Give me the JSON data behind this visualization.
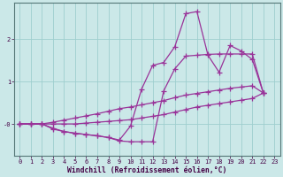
{
  "xlabel": "Windchill (Refroidissement éolien,°C)",
  "bg_color": "#cbe8e8",
  "line_color": "#993399",
  "marker": "+",
  "markersize": 4,
  "linewidth": 0.9,
  "xlim": [
    -0.5,
    23.5
  ],
  "ylim": [
    -0.75,
    2.85
  ],
  "yticks": [
    0.0,
    1.0,
    2.0
  ],
  "ytick_labels": [
    "-0",
    "1",
    "2"
  ],
  "xticks": [
    0,
    1,
    2,
    3,
    4,
    5,
    6,
    7,
    8,
    9,
    10,
    11,
    12,
    13,
    14,
    15,
    16,
    17,
    18,
    19,
    20,
    21,
    22,
    23
  ],
  "grid_color": "#9ecece",
  "s1_x": [
    0,
    1,
    2,
    3,
    4,
    5,
    6,
    7,
    8,
    9,
    10,
    11,
    12,
    13,
    14,
    15,
    16,
    17,
    18,
    19,
    20,
    21,
    22
  ],
  "s1_y": [
    0.0,
    0.0,
    0.0,
    -0.1,
    -0.18,
    -0.22,
    -0.25,
    -0.28,
    -0.32,
    -0.38,
    -0.05,
    0.82,
    1.38,
    1.45,
    1.82,
    2.6,
    2.65,
    1.62,
    1.22,
    1.85,
    1.72,
    1.52,
    0.73
  ],
  "s2_x": [
    0,
    1,
    2,
    3,
    4,
    5,
    6,
    7,
    8,
    9,
    10,
    11,
    12,
    13,
    14,
    15,
    16,
    17,
    18,
    19,
    20,
    21,
    22
  ],
  "s2_y": [
    0.0,
    0.0,
    0.0,
    -0.12,
    -0.18,
    -0.22,
    -0.25,
    -0.28,
    -0.32,
    -0.4,
    -0.42,
    -0.42,
    -0.42,
    0.78,
    1.3,
    1.6,
    1.62,
    1.64,
    1.65,
    1.65,
    1.65,
    1.65,
    0.73
  ],
  "s3_x": [
    0,
    1,
    2,
    3,
    4,
    5,
    6,
    7,
    8,
    9,
    10,
    11,
    12,
    13,
    14,
    15,
    16,
    17,
    18,
    19,
    20,
    21,
    22
  ],
  "s3_y": [
    0.0,
    0.0,
    0.0,
    0.04,
    0.09,
    0.14,
    0.19,
    0.24,
    0.3,
    0.36,
    0.4,
    0.45,
    0.5,
    0.55,
    0.62,
    0.68,
    0.72,
    0.76,
    0.8,
    0.84,
    0.87,
    0.9,
    0.73
  ],
  "s4_x": [
    0,
    1,
    2,
    3,
    4,
    5,
    6,
    7,
    8,
    9,
    10,
    11,
    12,
    13,
    14,
    15,
    16,
    17,
    18,
    19,
    20,
    21,
    22
  ],
  "s4_y": [
    0.0,
    0.0,
    0.0,
    0.0,
    0.0,
    0.0,
    0.02,
    0.04,
    0.06,
    0.08,
    0.1,
    0.14,
    0.18,
    0.22,
    0.28,
    0.34,
    0.4,
    0.44,
    0.48,
    0.52,
    0.56,
    0.6,
    0.73
  ]
}
